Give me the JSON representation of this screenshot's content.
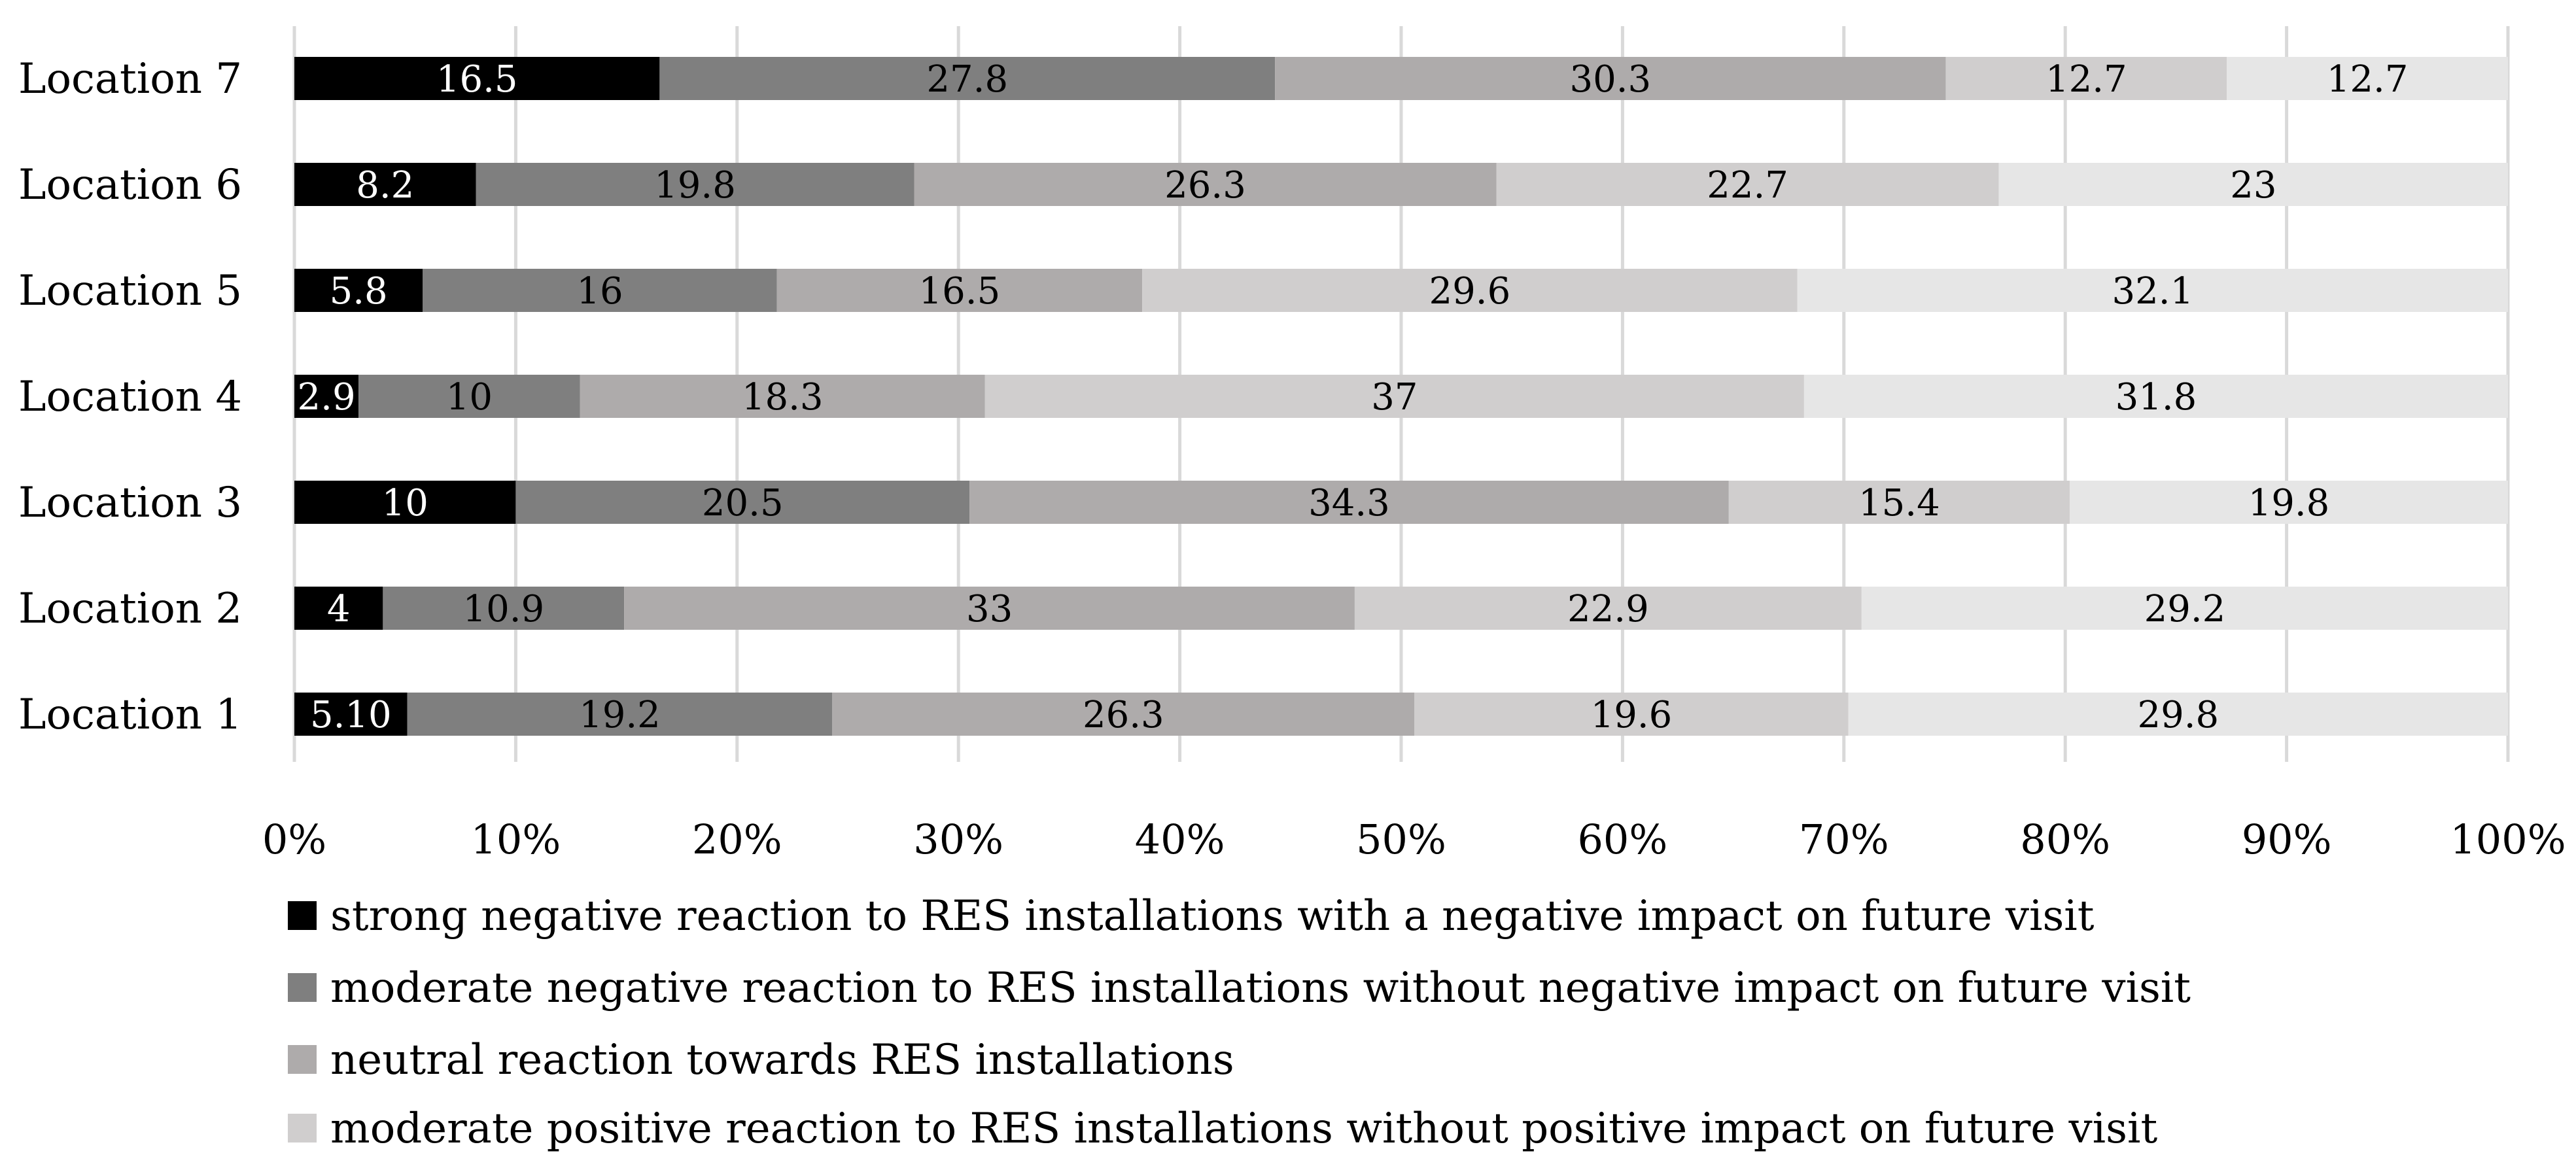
{
  "chart_data": {
    "type": "bar",
    "orientation": "horizontal",
    "stacked": "100%",
    "categories": [
      "Location 7",
      "Location 6",
      "Location 5",
      "Location 4",
      "Location 3",
      "Location 2",
      "Location 1"
    ],
    "series": [
      {
        "name": "strong negative reaction to RES installations with a negative impact on future visit",
        "color": "#000000",
        "label_color": "#ffffff",
        "values": [
          16.5,
          8.2,
          5.8,
          2.9,
          10,
          4,
          5.1
        ],
        "labels": [
          "16.5",
          "8.2",
          "5.8",
          "2.9",
          "10",
          "4",
          "5.10"
        ]
      },
      {
        "name": "moderate negative reaction to RES installations without negative impact on future visit",
        "color": "#7f7f7f",
        "label_color": "#000000",
        "values": [
          27.8,
          19.8,
          16,
          10,
          20.5,
          10.9,
          19.2
        ],
        "labels": [
          "27.8",
          "19.8",
          "16",
          "10",
          "20.5",
          "10.9",
          "19.2"
        ]
      },
      {
        "name": "neutral reaction towards RES installations",
        "color": "#aeabab",
        "label_color": "#000000",
        "values": [
          30.3,
          26.3,
          16.5,
          18.3,
          34.3,
          33,
          26.3
        ],
        "labels": [
          "30.3",
          "26.3",
          "16.5",
          "18.3",
          "34.3",
          "33",
          "26.3"
        ]
      },
      {
        "name": "moderate positive reaction to RES installations without positive impact on future visit",
        "color": "#d0cece",
        "label_color": "#000000",
        "values": [
          12.7,
          22.7,
          29.6,
          37,
          15.4,
          22.9,
          19.6
        ],
        "labels": [
          "12.7",
          "22.7",
          "29.6",
          "37",
          "15.4",
          "22.9",
          "19.6"
        ]
      },
      {
        "name": "",
        "color": "#e6e6e6",
        "label_color": "#000000",
        "values": [
          12.7,
          23,
          32.1,
          31.8,
          19.8,
          29.2,
          29.8
        ],
        "labels": [
          "12.7",
          "23",
          "32.1",
          "31.8",
          "19.8",
          "29.2",
          "29.8"
        ]
      }
    ],
    "x_ticks": [
      "0%",
      "10%",
      "20%",
      "30%",
      "40%",
      "50%",
      "60%",
      "70%",
      "80%",
      "90%",
      "100%"
    ],
    "xlim": [
      0,
      100
    ],
    "grid": true,
    "legend_position": "bottom",
    "legend_visible_entries": 4,
    "title": "",
    "xlabel": "",
    "ylabel": ""
  }
}
